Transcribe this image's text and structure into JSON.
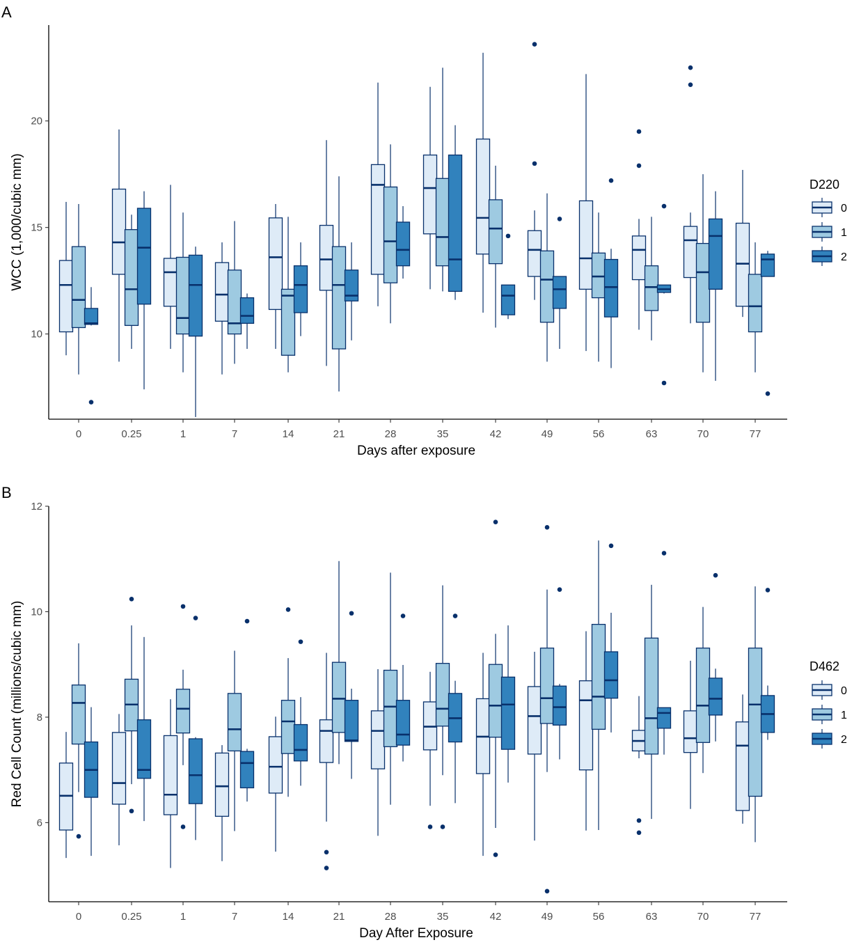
{
  "colors": {
    "fill": [
      "#deebf7",
      "#9ecae1",
      "#3182bd"
    ],
    "stroke": "#08306b",
    "axis": "#000000"
  },
  "chart_data": [
    {
      "panel": "A",
      "type": "boxplot",
      "xlabel": "Days after exposure",
      "ylabel": "WCC (1,000/cubic mm)",
      "ylim": [
        6.0,
        24.5
      ],
      "yticks": [
        "10",
        "15",
        "20"
      ],
      "categories": [
        "0",
        "0.25",
        "1",
        "7",
        "14",
        "21",
        "28",
        "35",
        "42",
        "49",
        "56",
        "63",
        "70",
        "77"
      ],
      "legend": {
        "title": "D220",
        "entries": [
          "0",
          "1",
          "2"
        ]
      },
      "series": [
        {
          "name": "0",
          "boxes": [
            [
              9.0,
              10.1,
              12.3,
              13.45,
              16.2,
              []
            ],
            [
              8.7,
              12.8,
              14.3,
              16.8,
              19.6,
              []
            ],
            [
              9.3,
              11.3,
              12.9,
              13.55,
              17.0,
              []
            ],
            [
              8.1,
              10.6,
              11.85,
              13.35,
              14.3,
              []
            ],
            [
              9.3,
              11.15,
              13.6,
              15.45,
              16.1,
              []
            ],
            [
              8.5,
              12.05,
              13.5,
              15.1,
              19.1,
              []
            ],
            [
              11.3,
              12.8,
              17.0,
              17.95,
              21.8,
              []
            ],
            [
              12.1,
              14.7,
              16.85,
              18.4,
              21.6,
              []
            ],
            [
              11.0,
              13.75,
              15.45,
              19.15,
              23.2,
              []
            ],
            [
              11.6,
              12.7,
              13.95,
              14.85,
              15.8,
              [
                18.0,
                23.6
              ]
            ],
            [
              9.2,
              12.1,
              13.55,
              16.25,
              22.2,
              []
            ],
            [
              10.2,
              12.55,
              13.95,
              14.6,
              15.4,
              [
                17.9,
                19.5
              ]
            ],
            [
              10.5,
              12.65,
              14.4,
              15.05,
              15.7,
              [
                21.7,
                22.5
              ]
            ],
            [
              10.8,
              11.3,
              13.3,
              15.2,
              17.7,
              []
            ]
          ]
        },
        {
          "name": "1",
          "boxes": [
            [
              8.1,
              10.3,
              11.6,
              14.1,
              16.1,
              []
            ],
            [
              9.3,
              10.4,
              12.1,
              14.9,
              15.6,
              []
            ],
            [
              8.2,
              10.0,
              10.75,
              13.6,
              15.7,
              []
            ],
            [
              8.6,
              10.0,
              10.5,
              13.0,
              15.3,
              []
            ],
            [
              8.2,
              9.0,
              11.8,
              12.1,
              15.5,
              []
            ],
            [
              7.3,
              9.3,
              12.3,
              14.1,
              17.4,
              []
            ],
            [
              10.5,
              12.4,
              14.35,
              16.9,
              18.9,
              []
            ],
            [
              12.0,
              13.2,
              14.55,
              17.3,
              22.5,
              []
            ],
            [
              10.3,
              13.3,
              14.95,
              16.3,
              17.9,
              []
            ],
            [
              8.7,
              10.55,
              12.55,
              13.9,
              16.6,
              []
            ],
            [
              8.7,
              11.7,
              12.7,
              13.8,
              15.7,
              []
            ],
            [
              9.7,
              11.1,
              12.2,
              13.2,
              15.5,
              []
            ],
            [
              8.2,
              10.55,
              12.9,
              14.25,
              17.5,
              []
            ],
            [
              8.2,
              10.1,
              11.3,
              12.8,
              14.3,
              []
            ]
          ]
        },
        {
          "name": "2",
          "boxes": [
            [
              10.4,
              10.45,
              10.5,
              11.2,
              12.2,
              [
                6.8
              ]
            ],
            [
              7.4,
              11.4,
              14.05,
              15.9,
              16.7,
              []
            ],
            [
              6.1,
              9.9,
              12.3,
              13.7,
              14.1,
              []
            ],
            [
              9.3,
              10.5,
              10.85,
              11.7,
              11.9,
              []
            ],
            [
              9.9,
              11.0,
              12.3,
              13.2,
              14.3,
              []
            ],
            [
              9.7,
              11.55,
              11.8,
              13.0,
              14.3,
              []
            ],
            [
              12.6,
              13.2,
              13.95,
              15.25,
              16.0,
              []
            ],
            [
              11.6,
              12.0,
              13.5,
              18.4,
              19.8,
              []
            ],
            [
              10.7,
              10.9,
              11.8,
              12.3,
              12.3,
              [
                14.6
              ]
            ],
            [
              9.3,
              11.2,
              12.1,
              12.7,
              12.7,
              [
                15.4
              ]
            ],
            [
              8.4,
              10.8,
              12.2,
              13.5,
              14.0,
              [
                17.2
              ]
            ],
            [
              11.9,
              11.95,
              12.1,
              12.3,
              12.3,
              [
                7.7,
                16.0
              ]
            ],
            [
              7.8,
              12.1,
              14.6,
              15.4,
              16.7,
              []
            ],
            [
              12.7,
              12.7,
              13.5,
              13.75,
              13.9,
              [
                7.2
              ]
            ]
          ]
        }
      ]
    },
    {
      "panel": "B",
      "type": "boxplot",
      "xlabel": "Day After Exposure",
      "ylabel": "Red Cell Count (millions/cubic mm)",
      "ylim": [
        4.5,
        12.0
      ],
      "yticks": [
        "6",
        "8",
        "10",
        "12"
      ],
      "categories": [
        "0",
        "0.25",
        "1",
        "7",
        "14",
        "21",
        "28",
        "35",
        "42",
        "49",
        "56",
        "63",
        "70",
        "77"
      ],
      "legend": {
        "title": "D462",
        "entries": [
          "0",
          "1",
          "2"
        ]
      },
      "series": [
        {
          "name": "0",
          "boxes": [
            [
              5.33,
              5.86,
              6.51,
              7.13,
              7.72,
              []
            ],
            [
              5.57,
              6.35,
              6.75,
              7.71,
              8.06,
              []
            ],
            [
              5.14,
              6.15,
              6.53,
              7.65,
              8.34,
              []
            ],
            [
              5.27,
              6.12,
              6.69,
              7.32,
              7.47,
              []
            ],
            [
              5.45,
              6.56,
              7.06,
              7.63,
              8.01,
              []
            ],
            [
              6.02,
              7.14,
              7.74,
              7.95,
              9.22,
              [
                5.44,
                5.14
              ]
            ],
            [
              5.75,
              7.02,
              7.74,
              8.12,
              8.91,
              []
            ],
            [
              6.32,
              7.38,
              7.82,
              8.29,
              8.86,
              [
                5.92
              ]
            ],
            [
              5.37,
              6.93,
              7.63,
              8.35,
              9.22,
              []
            ],
            [
              5.66,
              7.3,
              8.02,
              8.58,
              9.24,
              []
            ],
            [
              5.85,
              7.0,
              8.32,
              8.69,
              9.63,
              []
            ],
            [
              7.22,
              7.36,
              7.55,
              7.75,
              8.4,
              [
                6.04,
                5.81
              ]
            ],
            [
              6.26,
              7.33,
              7.6,
              8.12,
              9.07,
              []
            ],
            [
              5.98,
              6.23,
              7.46,
              7.91,
              8.43,
              []
            ]
          ]
        },
        {
          "name": "1",
          "boxes": [
            [
              6.58,
              7.49,
              8.27,
              8.61,
              9.4,
              [
                5.74
              ]
            ],
            [
              6.73,
              7.74,
              8.24,
              8.72,
              9.74,
              [
                10.24,
                6.22
              ]
            ],
            [
              7.09,
              7.7,
              8.16,
              8.53,
              8.9,
              [
                10.1,
                5.92
              ]
            ],
            [
              5.84,
              7.36,
              7.77,
              8.45,
              9.26,
              []
            ],
            [
              6.49,
              7.31,
              7.92,
              8.32,
              9.12,
              [
                10.04
              ]
            ],
            [
              7.11,
              7.71,
              8.35,
              9.04,
              10.96,
              []
            ],
            [
              6.34,
              7.44,
              8.2,
              8.89,
              10.74,
              []
            ],
            [
              6.9,
              7.83,
              8.16,
              9.02,
              10.5,
              [
                5.92
              ]
            ],
            [
              5.9,
              7.62,
              8.22,
              9.0,
              9.58,
              [
                11.7,
                5.39
              ]
            ],
            [
              6.96,
              7.88,
              8.36,
              9.31,
              10.42,
              [
                11.6,
                4.7
              ]
            ],
            [
              5.86,
              7.77,
              8.39,
              9.76,
              11.35,
              []
            ],
            [
              6.07,
              7.3,
              7.98,
              9.5,
              10.51,
              []
            ],
            [
              6.94,
              7.52,
              8.22,
              9.31,
              10.09,
              []
            ],
            [
              5.63,
              6.5,
              8.24,
              9.31,
              10.48,
              []
            ]
          ]
        },
        {
          "name": "2",
          "boxes": [
            [
              5.37,
              6.48,
              7.0,
              7.53,
              8.19,
              []
            ],
            [
              6.03,
              6.84,
              7.0,
              7.95,
              9.52,
              []
            ],
            [
              5.67,
              6.36,
              6.9,
              7.59,
              7.62,
              [
                9.88
              ]
            ],
            [
              6.4,
              6.66,
              7.13,
              7.35,
              7.4,
              [
                9.82
              ]
            ],
            [
              6.7,
              7.17,
              7.38,
              7.86,
              8.38,
              [
                9.43
              ]
            ],
            [
              6.83,
              7.54,
              7.56,
              8.32,
              8.54,
              [
                9.97
              ]
            ],
            [
              7.16,
              7.47,
              7.67,
              8.32,
              8.99,
              [
                9.92
              ]
            ],
            [
              6.37,
              7.53,
              7.98,
              8.45,
              8.69,
              [
                9.92
              ]
            ],
            [
              6.76,
              7.39,
              8.24,
              8.76,
              9.74,
              []
            ],
            [
              7.2,
              7.85,
              8.19,
              8.59,
              8.63,
              [
                10.42
              ]
            ],
            [
              7.71,
              8.36,
              8.7,
              9.24,
              9.98,
              [
                11.25
              ]
            ],
            [
              7.29,
              7.79,
              8.08,
              8.18,
              8.18,
              [
                11.11
              ]
            ],
            [
              7.54,
              8.04,
              8.35,
              8.74,
              8.92,
              [
                10.69
              ]
            ],
            [
              7.57,
              7.71,
              8.06,
              8.41,
              8.6,
              [
                10.41
              ]
            ]
          ]
        }
      ]
    }
  ]
}
